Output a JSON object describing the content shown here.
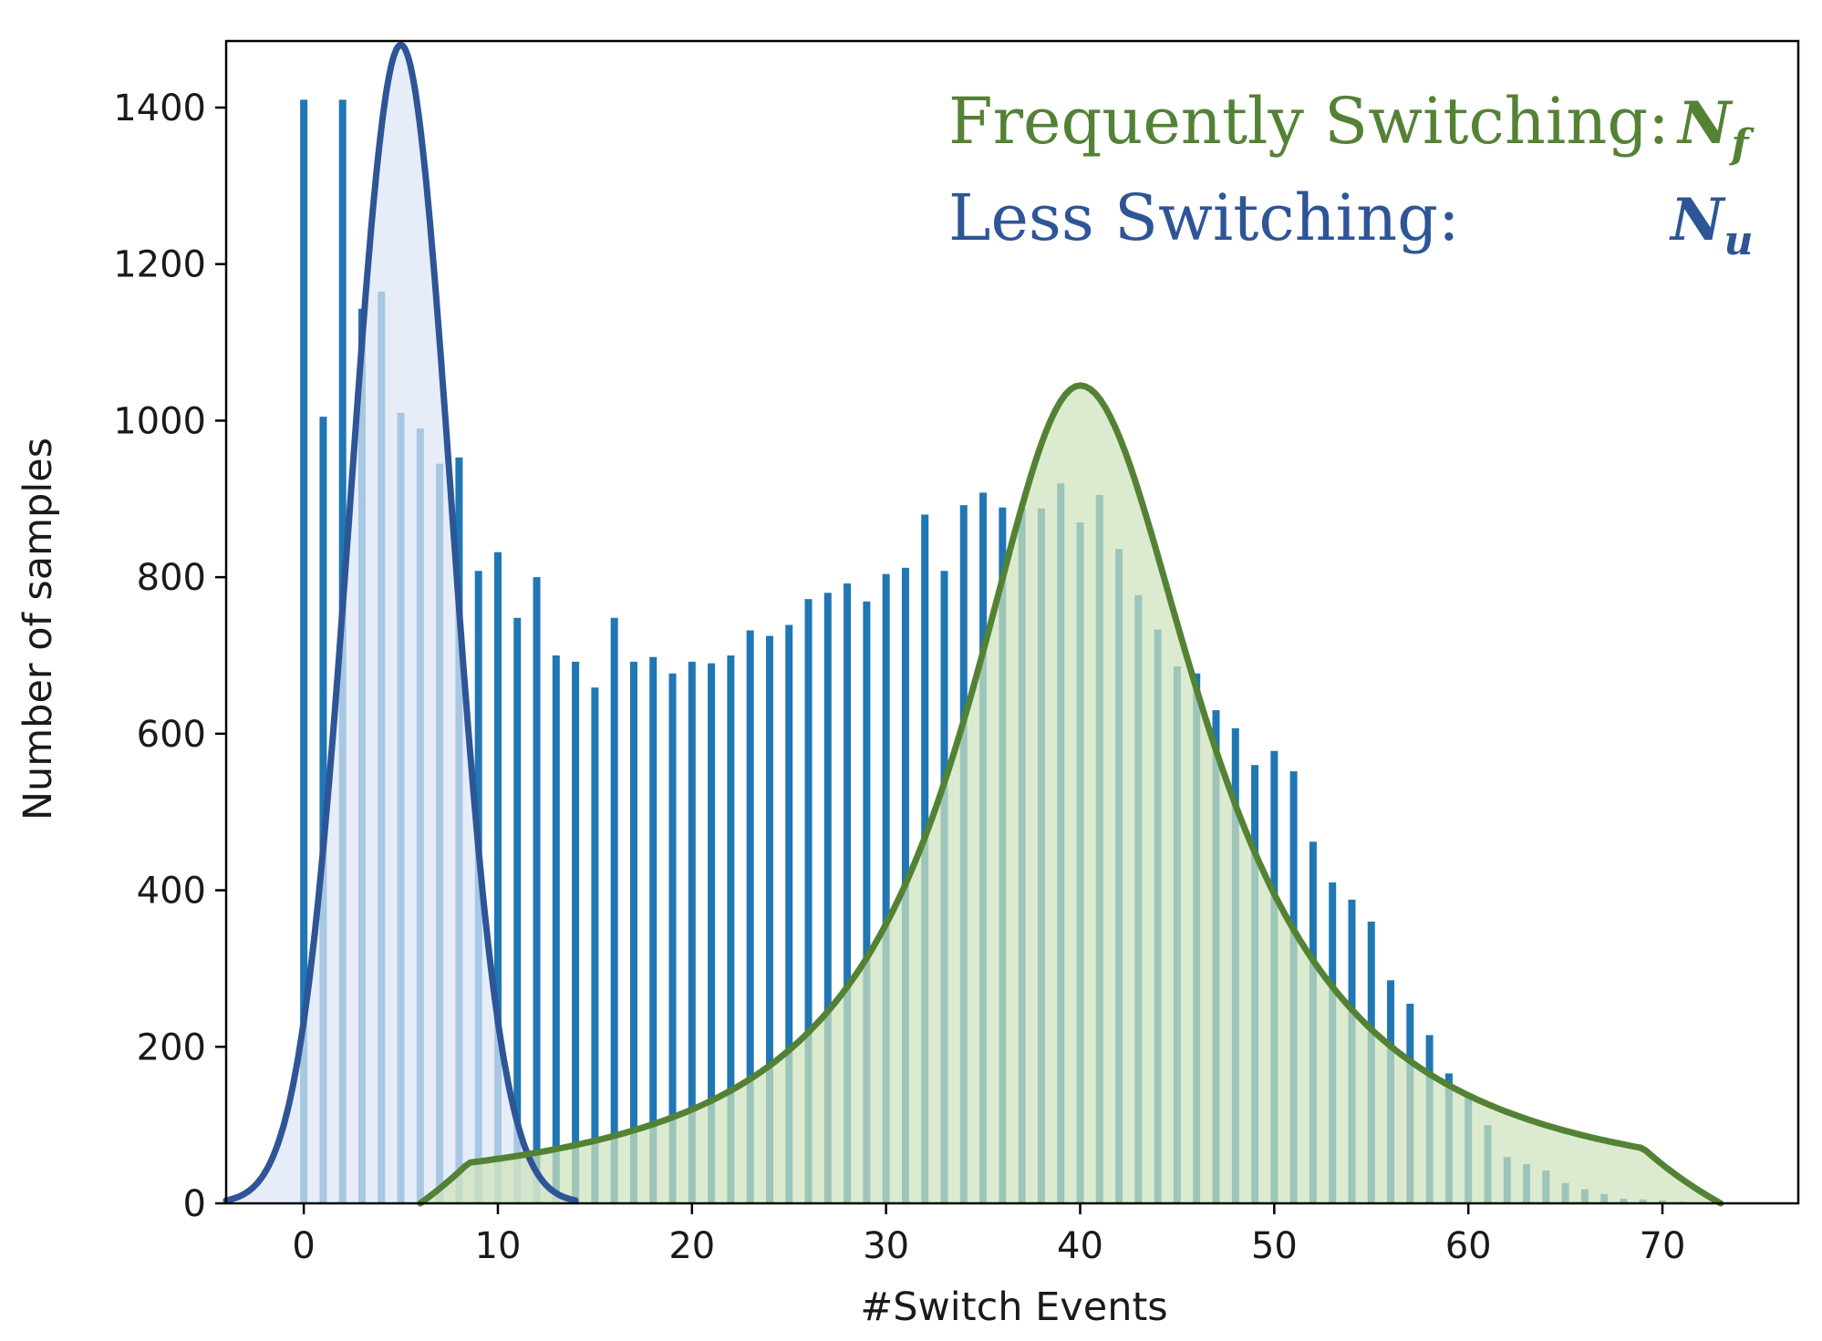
{
  "chart_data": {
    "type": "bar",
    "xlabel": "#Switch Events",
    "ylabel": "Number of samples",
    "xlim": [
      -4,
      77
    ],
    "ylim": [
      0,
      1485
    ],
    "xticks": [
      0,
      10,
      20,
      30,
      40,
      50,
      60,
      70
    ],
    "yticks": [
      0,
      200,
      400,
      600,
      800,
      1000,
      1200,
      1400
    ],
    "grid": false,
    "bar_color": "#1f77b4",
    "x": [
      0,
      1,
      2,
      3,
      4,
      5,
      6,
      7,
      8,
      9,
      10,
      11,
      12,
      13,
      14,
      15,
      16,
      17,
      18,
      19,
      20,
      21,
      22,
      23,
      24,
      25,
      26,
      27,
      28,
      29,
      30,
      31,
      32,
      33,
      34,
      35,
      36,
      37,
      38,
      39,
      40,
      41,
      42,
      43,
      44,
      45,
      46,
      47,
      48,
      49,
      50,
      51,
      52,
      53,
      54,
      55,
      56,
      57,
      58,
      59,
      60,
      61,
      62,
      63,
      64,
      65,
      66,
      67,
      68,
      69,
      70,
      71
    ],
    "values": [
      1410,
      1005,
      1410,
      1143,
      1165,
      1010,
      990,
      945,
      953,
      808,
      832,
      748,
      800,
      700,
      692,
      659,
      748,
      692,
      698,
      677,
      692,
      690,
      700,
      732,
      725,
      739,
      772,
      780,
      792,
      769,
      804,
      812,
      880,
      808,
      892,
      908,
      889,
      888,
      888,
      920,
      870,
      905,
      836,
      777,
      733,
      686,
      677,
      630,
      607,
      560,
      578,
      552,
      462,
      410,
      388,
      360,
      285,
      255,
      215,
      166,
      140,
      100,
      59,
      50,
      42,
      26,
      18,
      12,
      6,
      5,
      4,
      2
    ],
    "fits": [
      {
        "name": "Less Switching",
        "symbol": "N",
        "subscript": "u",
        "mean": 5,
        "std": 2.6,
        "peak": 1480,
        "range": [
          -4,
          14
        ],
        "color": "#2e5596",
        "fill": "#dde6f5"
      },
      {
        "name": "Frequently Switching",
        "symbol": "N",
        "subscript": "f",
        "mean": 40,
        "peak": 1045,
        "range": [
          6,
          73
        ],
        "color": "#548235",
        "fill": "#cfe3bd"
      }
    ],
    "legend": {
      "placement": "top-right",
      "entries": [
        {
          "label": "Frequently Switching:",
          "symbol": "N",
          "subscript": "f",
          "color": "#548235"
        },
        {
          "label": "Less Switching:",
          "symbol": "N",
          "subscript": "u",
          "color": "#2e5596"
        }
      ]
    }
  }
}
